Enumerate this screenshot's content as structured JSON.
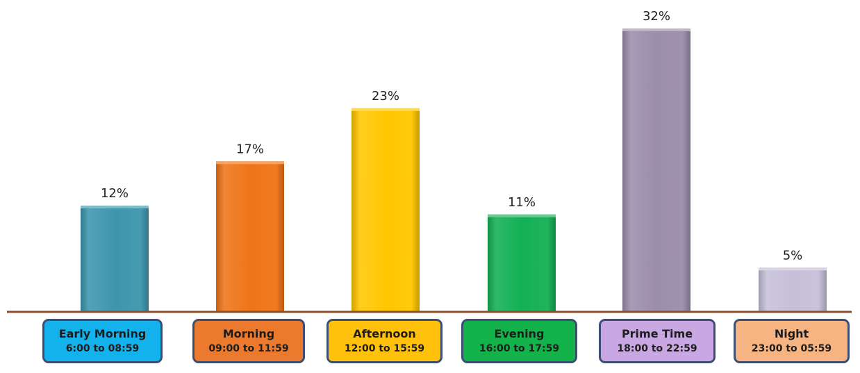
{
  "chart_data": {
    "type": "bar",
    "categories": [
      "Early Morning",
      "Morning",
      "Afternoon",
      "Evening",
      "Prime Time",
      "Night"
    ],
    "time_ranges": [
      "6:00 to 08:59",
      "09:00 to 11:59",
      "12:00 to 15:59",
      "16:00 to 17:59",
      "18:00 to 22:59",
      "23:00 to 05:59"
    ],
    "values": [
      12,
      17,
      23,
      11,
      32,
      5
    ],
    "value_labels": [
      "12%",
      "17%",
      "23%",
      "11%",
      "32%",
      "5%"
    ],
    "unit": "%",
    "title": "",
    "xlabel": "",
    "ylabel": "",
    "ylim": [
      0,
      32
    ],
    "grid": false,
    "legend": "none",
    "colors": {
      "bars": [
        "#3d96ad",
        "#ef7417",
        "#ffc600",
        "#13b054",
        "#9b8dac",
        "#c6c0d8"
      ],
      "boxes": [
        "#14b2ec",
        "#ec7a2e",
        "#ffc10b",
        "#13b24b",
        "#c9a7e2",
        "#f7b483"
      ],
      "baseline": "#8a4e2a",
      "box_border": "#3d4e73"
    }
  }
}
